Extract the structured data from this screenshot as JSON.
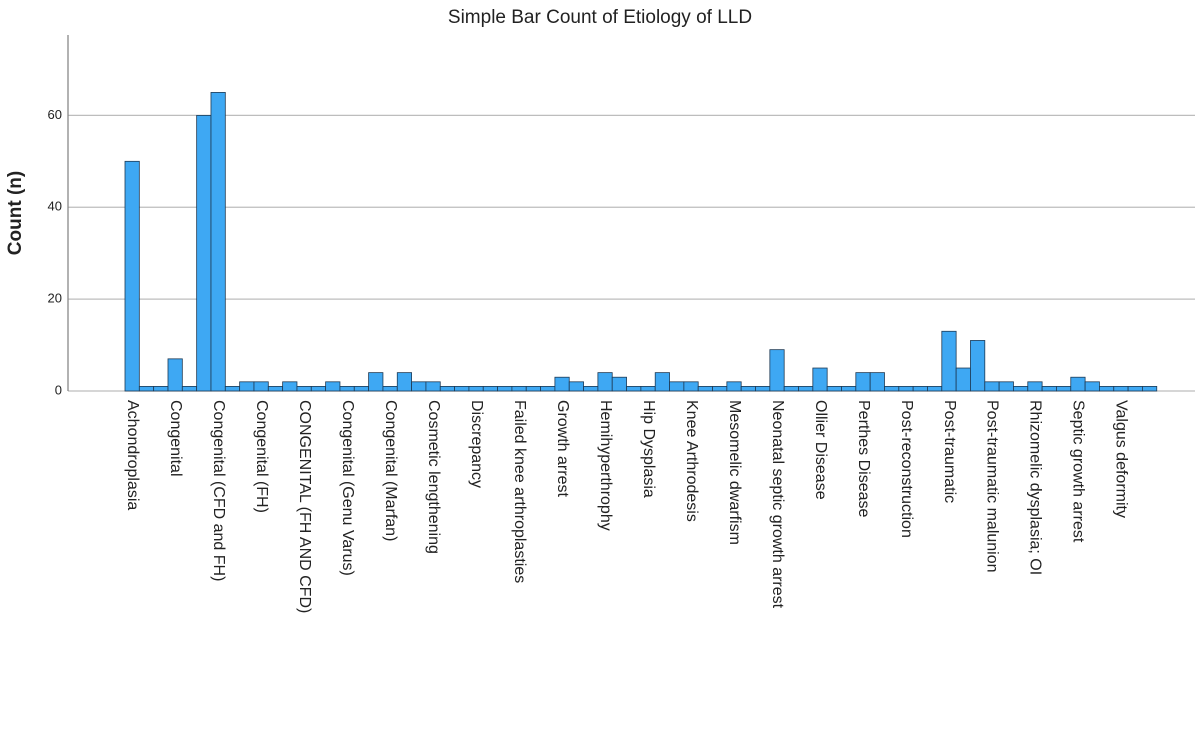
{
  "chart_data": {
    "type": "bar",
    "title": "Simple Bar Count of Etiology of LLD",
    "y_label": "Count (n)",
    "categories": [
      "Achondroplasia",
      null,
      null,
      "Congenital",
      null,
      null,
      "Congenital (CFD and FH)",
      null,
      null,
      "Congenital (FH)",
      null,
      null,
      "CONGENITAL (FH AND CFD)",
      null,
      null,
      "Congenital (Genu Varus)",
      null,
      null,
      "Congenital (Marfan)",
      null,
      null,
      "Cosmetic lengthening",
      null,
      null,
      "Discrepancy",
      null,
      null,
      "Failed knee arthroplasties",
      null,
      null,
      "Growth arrest",
      null,
      null,
      "Hemihyperthrophy",
      null,
      null,
      "Hip Dysplasia",
      null,
      null,
      "Knee Arthrodesis",
      null,
      null,
      "Mesomelic dwarfism",
      null,
      null,
      "Neonatal septic growth arrest",
      null,
      null,
      "Ollier Disease",
      null,
      null,
      "Perthes Disease",
      null,
      null,
      "Post-reconstruction",
      null,
      null,
      "Post-traumatic",
      null,
      null,
      "Post-traumatic malunion",
      null,
      null,
      "Rhizomelic dysplasia; OI",
      null,
      null,
      "Septic growth arrest",
      null,
      null,
      "Valgus deformity",
      null,
      null
    ],
    "values": [
      50,
      1,
      1,
      7,
      1,
      60,
      65,
      1,
      2,
      2,
      1,
      2,
      1,
      1,
      2,
      1,
      1,
      4,
      1,
      4,
      2,
      2,
      1,
      1,
      1,
      1,
      1,
      1,
      1,
      1,
      3,
      2,
      1,
      4,
      3,
      1,
      1,
      4,
      2,
      2,
      1,
      1,
      2,
      1,
      1,
      9,
      1,
      1,
      5,
      1,
      1,
      4,
      4,
      1,
      1,
      1,
      1,
      13,
      5,
      11,
      2,
      2,
      1,
      2,
      1,
      1,
      3,
      2,
      1,
      1,
      1,
      1
    ],
    "color": "#3ea8f3",
    "ylim": [
      0,
      77.5
    ],
    "yticks": [
      0,
      20,
      40,
      60
    ],
    "grid": true
  }
}
